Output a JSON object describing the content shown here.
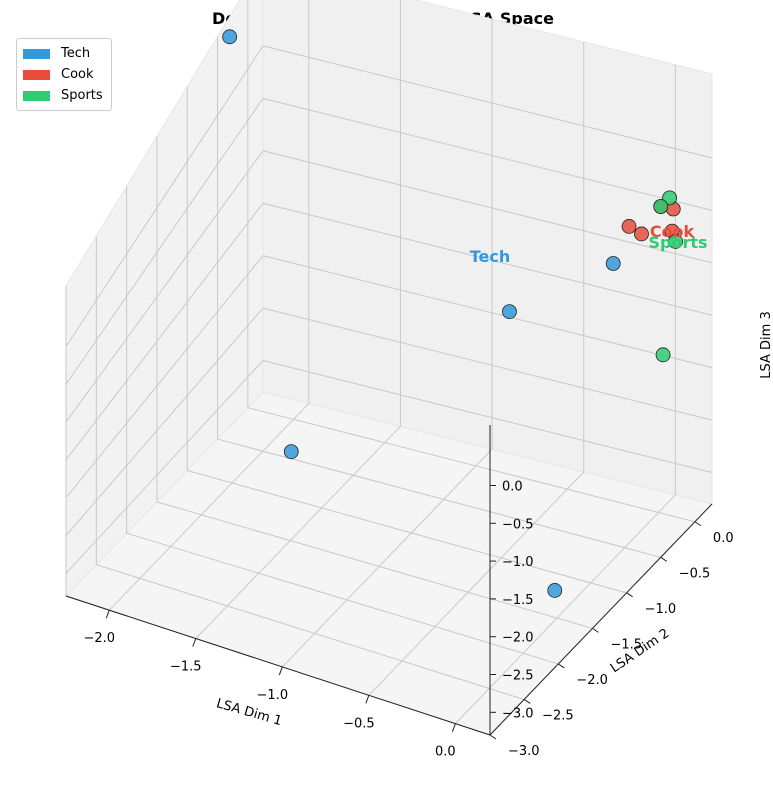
{
  "chart_data": {
    "type": "scatter",
    "title": "Document Clustering in 3D LSA Space",
    "xlabel": "LSA Dim 1",
    "ylabel": "LSA Dim 2",
    "zlabel": "LSA Dim 3",
    "x_ticks": [
      "−2.0",
      "−1.5",
      "−1.0",
      "−0.5",
      "0.0"
    ],
    "y_ticks": [
      "0.0",
      "−0.5",
      "−1.0",
      "−1.5",
      "−2.0",
      "−2.5",
      "−3.0"
    ],
    "z_ticks": [
      "0.0",
      "−0.5",
      "−1.0",
      "−1.5",
      "−2.0",
      "−2.5",
      "−3.0"
    ],
    "grid": true,
    "legend_position": "top-left",
    "legend": [
      "Tech",
      "Cook",
      "Sports"
    ],
    "colors": {
      "Tech": "#3498db",
      "Cook": "#e74c3c",
      "Sports": "#2ecc71"
    },
    "cluster_labels": [
      {
        "text": "Tech",
        "series": "Tech"
      },
      {
        "text": "Cook",
        "series": "Cook"
      },
      {
        "text": "Sports",
        "series": "Sports"
      }
    ],
    "series": [
      {
        "name": "Tech",
        "points": [
          {
            "x": -2.25,
            "y": -0.3,
            "z": 0.6
          },
          {
            "x": -0.1,
            "y": -0.4,
            "z": -0.55
          },
          {
            "x": -0.6,
            "y": -0.6,
            "z": -1.1
          },
          {
            "x": -1.6,
            "y": -1.2,
            "z": -2.6
          },
          {
            "x": -0.05,
            "y": -1.4,
            "z": -3.1
          }
        ]
      },
      {
        "name": "Cook",
        "points": [
          {
            "x": 0.05,
            "y": -0.1,
            "z": -0.2
          },
          {
            "x": 0.1,
            "y": -0.05,
            "z": -0.25
          },
          {
            "x": 0.0,
            "y": -0.25,
            "z": -0.35
          },
          {
            "x": -0.05,
            "y": -0.3,
            "z": -0.25
          },
          {
            "x": 0.15,
            "y": -0.2,
            "z": -0.3
          }
        ]
      },
      {
        "name": "Sports",
        "points": [
          {
            "x": 0.08,
            "y": -0.05,
            "z": -0.15
          },
          {
            "x": 0.15,
            "y": -0.15,
            "z": -0.45
          },
          {
            "x": 0.1,
            "y": -0.2,
            "z": -1.55
          },
          {
            "x": 0.05,
            "y": -0.1,
            "z": -0.2
          }
        ]
      }
    ]
  }
}
